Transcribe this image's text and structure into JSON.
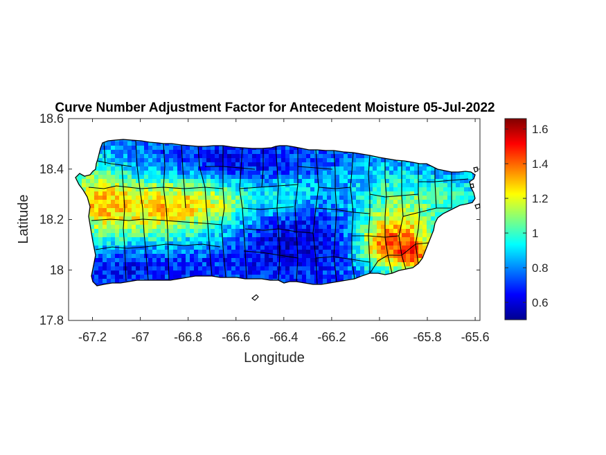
{
  "figure": {
    "title": "Curve Number Adjustment Factor for Antecedent Moisture 05-Jul-2022",
    "xlabel": "Longitude",
    "ylabel": "Latitude"
  },
  "chart_data": {
    "type": "heatmap",
    "title": "Curve Number Adjustment Factor for Antecedent Moisture 05-Jul-2022",
    "xlabel": "Longitude",
    "ylabel": "Latitude",
    "xlim": [
      -67.3,
      -65.58
    ],
    "ylim": [
      17.8,
      18.6
    ],
    "xticks": [
      -67.2,
      -67,
      -66.8,
      -66.6,
      -66.4,
      -66.2,
      -66,
      -65.8,
      -65.6
    ],
    "xtick_labels": [
      "-67.2",
      "-67",
      "-66.8",
      "-66.6",
      "-66.4",
      "-66.2",
      "-66",
      "-65.8",
      "-65.6"
    ],
    "yticks": [
      17.8,
      18,
      18.2,
      18.4,
      18.6
    ],
    "ytick_labels": [
      "17.8",
      "18",
      "18.2",
      "18.4",
      "18.6"
    ],
    "colorbar": {
      "colormap": "jet",
      "clim": [
        0.5,
        1.66
      ],
      "ticks": [
        0.6,
        0.8,
        1,
        1.2,
        1.4,
        1.6
      ],
      "tick_labels": [
        "0.6",
        "0.8",
        "1",
        "1.2",
        "1.4",
        "1.6"
      ]
    },
    "grid": false
  }
}
